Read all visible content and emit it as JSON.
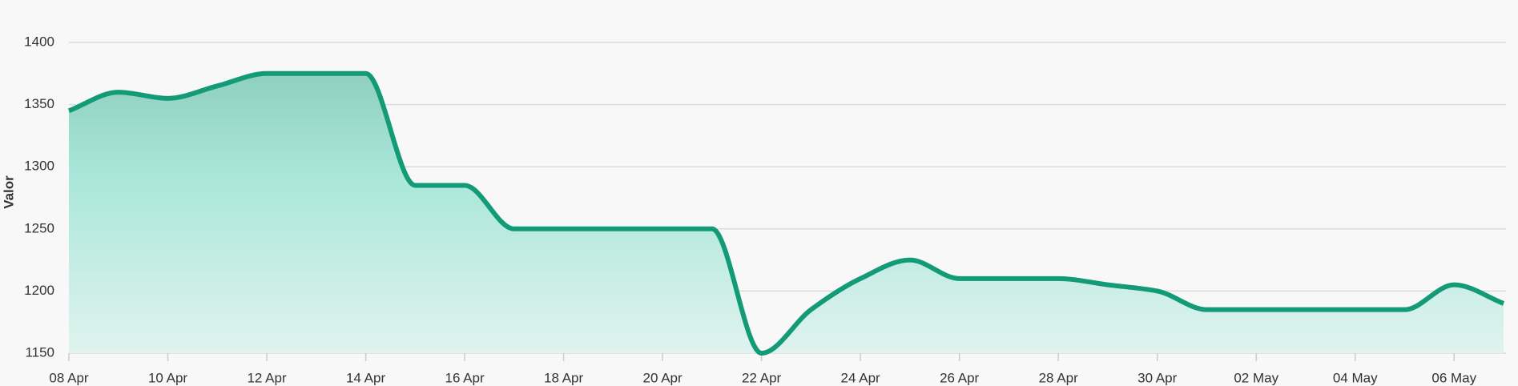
{
  "chart_data": {
    "type": "area",
    "y_axis_label": "Valor",
    "categories": [
      "08 Apr",
      null,
      "10 Apr",
      null,
      "12 Apr",
      null,
      "14 Apr",
      null,
      "16 Apr",
      null,
      "18 Apr",
      null,
      "20 Apr",
      null,
      "22 Apr",
      null,
      "24 Apr",
      null,
      "26 Apr",
      null,
      "28 Apr",
      null,
      "30 Apr",
      null,
      "02 May",
      null,
      "04 May",
      null,
      "06 May",
      null
    ],
    "values": [
      1345,
      1360,
      1355,
      1365,
      1375,
      1375,
      1375,
      1285,
      1285,
      1250,
      1250,
      1250,
      1250,
      1250,
      1150,
      1185,
      1210,
      1225,
      1210,
      1210,
      1210,
      1205,
      1200,
      1185,
      1185,
      1185,
      1185,
      1185,
      1205,
      1190
    ],
    "color": "#139a77",
    "ylim": [
      1150,
      1400
    ],
    "yticks": [
      1150,
      1200,
      1250,
      1300,
      1350,
      1400
    ],
    "grid": true
  }
}
